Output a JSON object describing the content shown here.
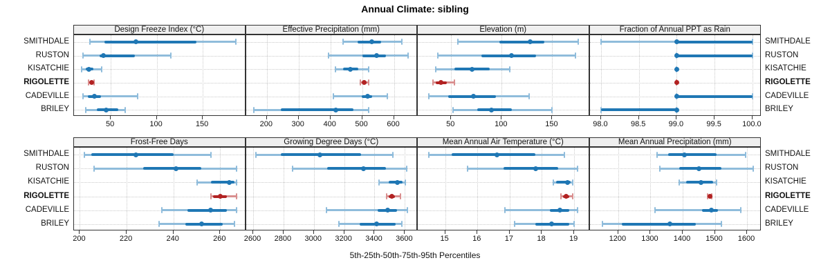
{
  "chart_data": {
    "type": "scatter",
    "subtype": "trellis-percentile-dotplot",
    "title": "Annual Climate: sibling",
    "caption": "5th-25th-50th-75th-95th Percentiles",
    "categories": [
      "SMITHDALE",
      "RUSTON",
      "KISATCHIE",
      "RIGOLETTE",
      "CADEVILLE",
      "BRILEY"
    ],
    "highlight_category": "RIGOLETTE",
    "percentiles": [
      5,
      25,
      50,
      75,
      95
    ],
    "legend_position": "none",
    "grid": "dotted",
    "colors": {
      "series_main": "#1f77b4",
      "series_band": "#8fbcdb",
      "highlight_main": "#b22222",
      "highlight_band": "#d98f8f",
      "strip_bg": "#efefef",
      "border": "#333333",
      "gridline": "#c9c9c9"
    },
    "panels": [
      {
        "title": "Design Freeze Index (°C)",
        "row": 0,
        "col": 0,
        "xlim": [
          10,
          197
        ],
        "ticks": [
          50,
          100,
          150
        ],
        "tick_labels": [
          "50",
          "100",
          "150"
        ],
        "series": [
          [
            27,
            43,
            77,
            143,
            186
          ],
          [
            20,
            38,
            42,
            76,
            115
          ],
          [
            18,
            23,
            26,
            31,
            40
          ],
          [
            26,
            28,
            29,
            31,
            32
          ],
          [
            20,
            25,
            32,
            39,
            79
          ],
          [
            23,
            35,
            45,
            58,
            66
          ]
        ]
      },
      {
        "title": "Effective Precipitation (mm)",
        "row": 0,
        "col": 1,
        "xlim": [
          134,
          675
        ],
        "ticks": [
          200,
          300,
          400,
          500,
          600
        ],
        "tick_labels": [
          "200",
          "300",
          "400",
          "500",
          "600"
        ],
        "series": [
          [
            440,
            485,
            530,
            560,
            625
          ],
          [
            395,
            500,
            545,
            575,
            645
          ],
          [
            415,
            440,
            463,
            487,
            520
          ],
          [
            495,
            502,
            507,
            514,
            520
          ],
          [
            410,
            498,
            518,
            532,
            580
          ],
          [
            160,
            244,
            418,
            472,
            520
          ]
        ]
      },
      {
        "title": "Elevation (m)",
        "row": 0,
        "col": 2,
        "xlim": [
          17,
          187
        ],
        "ticks": [
          50,
          100,
          150
        ],
        "tick_labels": [
          "50",
          "100",
          "150"
        ],
        "series": [
          [
            57,
            98,
            128,
            142,
            176
          ],
          [
            37,
            80,
            110,
            134,
            173
          ],
          [
            35,
            53,
            71,
            88,
            108
          ],
          [
            32,
            35,
            40,
            46,
            53
          ],
          [
            28,
            47,
            72,
            94,
            127
          ],
          [
            52,
            76,
            90,
            110,
            150
          ]
        ]
      },
      {
        "title": "Fraction of Annual PPT as Rain",
        "row": 0,
        "col": 3,
        "xlim": [
          97.85,
          100.12
        ],
        "ticks": [
          98.0,
          98.5,
          99.0,
          99.5,
          100.0
        ],
        "tick_labels": [
          "98.0",
          "98.5",
          "99.0",
          "99.5",
          "100.0"
        ],
        "series": [
          [
            98.0,
            99.0,
            99.0,
            100.0,
            100.0
          ],
          [
            99.0,
            99.0,
            99.0,
            100.0,
            100.0
          ],
          [
            99.0,
            99.0,
            99.0,
            99.0,
            99.0
          ],
          [
            99.0,
            99.0,
            99.0,
            99.0,
            99.0
          ],
          [
            99.0,
            99.0,
            99.0,
            100.0,
            100.0
          ],
          [
            98.0,
            98.0,
            99.0,
            99.0,
            99.0
          ]
        ]
      },
      {
        "title": "Frost-Free Days",
        "row": 1,
        "col": 0,
        "xlim": [
          197.5,
          271
        ],
        "ticks": [
          200,
          220,
          240,
          260
        ],
        "tick_labels": [
          "200",
          "220",
          "240",
          "260"
        ],
        "series": [
          [
            202,
            205,
            224,
            240,
            256
          ],
          [
            206,
            227,
            241,
            252,
            267
          ],
          [
            250,
            256,
            264,
            266,
            267
          ],
          [
            256,
            257,
            260,
            263,
            267
          ],
          [
            235,
            246,
            256,
            263,
            267
          ],
          [
            234,
            245,
            252,
            261,
            266
          ]
        ]
      },
      {
        "title": "Growing Degree Days (°C)",
        "row": 1,
        "col": 1,
        "xlim": [
          2552,
          3685
        ],
        "ticks": [
          2600,
          2800,
          3000,
          3200,
          3400,
          3600
        ],
        "tick_labels": [
          "2600",
          "2800",
          "3000",
          "3200",
          "3400",
          "3600"
        ],
        "series": [
          [
            2620,
            2780,
            3040,
            3310,
            3520
          ],
          [
            2860,
            3090,
            3325,
            3475,
            3610
          ],
          [
            3430,
            3495,
            3550,
            3585,
            3605
          ],
          [
            3480,
            3495,
            3512,
            3535,
            3572
          ],
          [
            3085,
            3420,
            3485,
            3550,
            3615
          ],
          [
            3165,
            3300,
            3413,
            3540,
            3580
          ]
        ]
      },
      {
        "title": "Mean Annual Air Temperature (°C)",
        "row": 1,
        "col": 2,
        "xlim": [
          14.15,
          19.48
        ],
        "ticks": [
          15,
          16,
          17,
          18,
          19
        ],
        "tick_labels": [
          "15",
          "16",
          "17",
          "18",
          "19"
        ],
        "series": [
          [
            14.5,
            15.2,
            16.6,
            17.8,
            18.7
          ],
          [
            15.7,
            16.8,
            17.8,
            18.5,
            19.1
          ],
          [
            18.35,
            18.45,
            18.8,
            18.9,
            18.95
          ],
          [
            18.6,
            18.65,
            18.75,
            18.85,
            18.95
          ],
          [
            16.85,
            18.25,
            18.55,
            18.85,
            19.1
          ],
          [
            17.15,
            17.8,
            18.3,
            18.85,
            19.0
          ]
        ]
      },
      {
        "title": "Mean Annual Precipitation (mm)",
        "row": 1,
        "col": 3,
        "xlim": [
          1111,
          1645
        ],
        "ticks": [
          1200,
          1300,
          1400,
          1500,
          1600
        ],
        "tick_labels": [
          "1200",
          "1300",
          "1400",
          "1500",
          "1600"
        ],
        "series": [
          [
            1320,
            1355,
            1405,
            1505,
            1595
          ],
          [
            1330,
            1390,
            1450,
            1520,
            1620
          ],
          [
            1390,
            1410,
            1457,
            1495,
            1505
          ],
          [
            1477,
            1480,
            1484,
            1487,
            1490
          ],
          [
            1315,
            1460,
            1490,
            1510,
            1580
          ],
          [
            1150,
            1210,
            1360,
            1440,
            1520
          ]
        ]
      }
    ]
  }
}
